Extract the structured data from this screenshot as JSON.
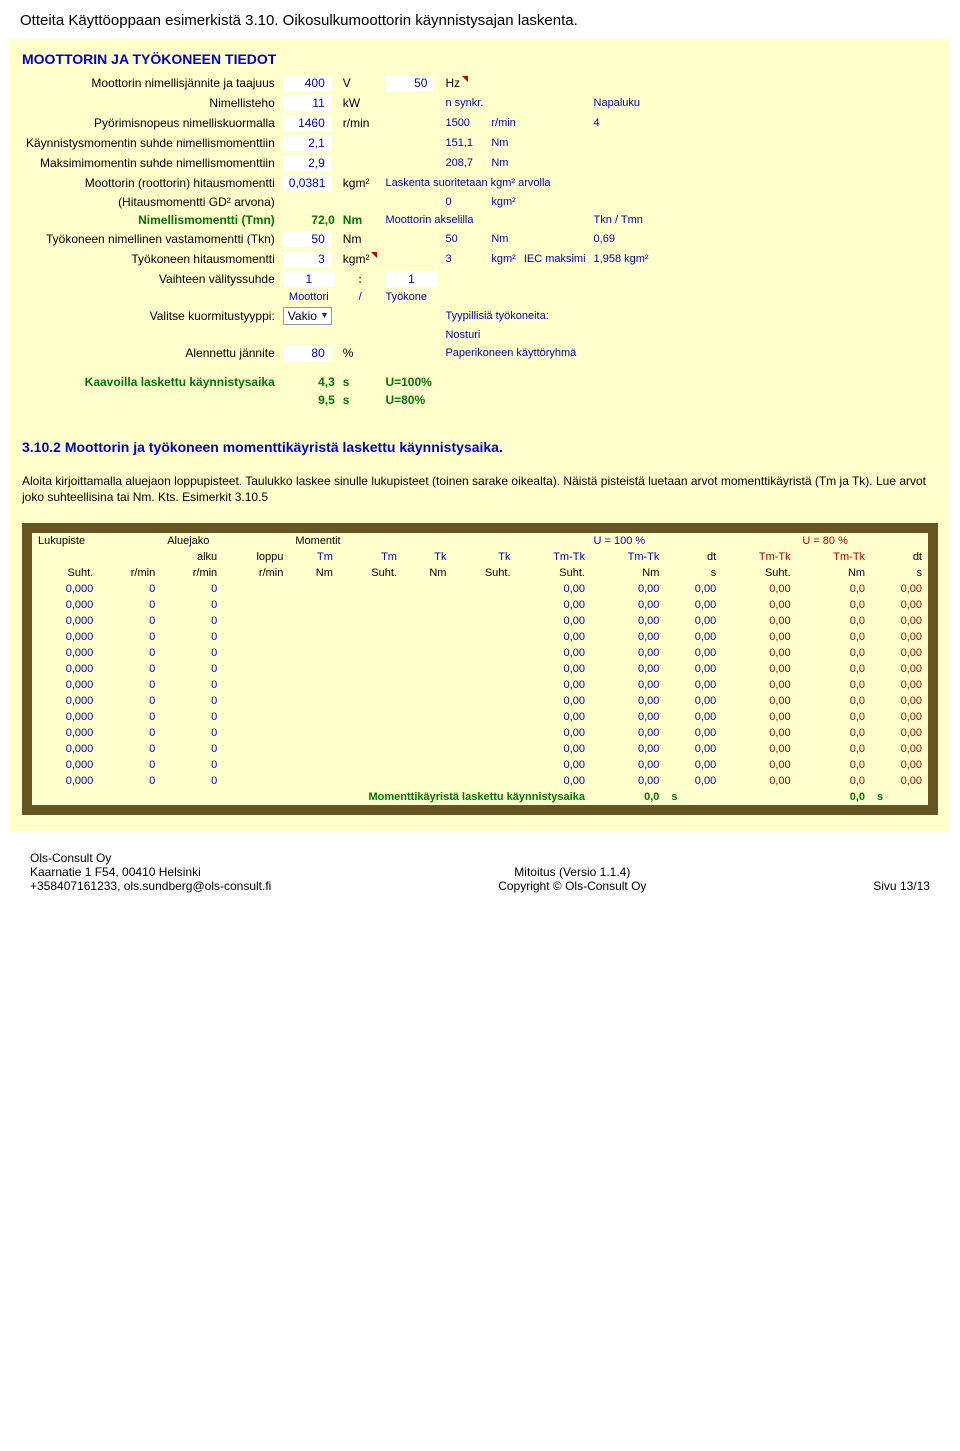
{
  "pageTitle": "Otteita Käyttöoppaan esimerkistä 3.10. Oikosulkumoottorin käynnistysajan laskenta.",
  "sec1": {
    "title": "MOOTTORIN JA TYÖKONEEN TIEDOT",
    "rows": {
      "r1": {
        "label": "Moottorin nimellisjännite ja taajuus",
        "v1": "400",
        "u1": "V",
        "v2": "50",
        "u2": "Hz"
      },
      "r2": {
        "label": "Nimellisteho",
        "v1": "11",
        "u1": "kW",
        "side": "n synkr.",
        "sideR": "Napaluku"
      },
      "r3": {
        "label": "Pyörimisnopeus nimelliskuormalla",
        "v1": "1460",
        "u1": "r/min",
        "sv": "1500",
        "su": "r/min",
        "nap": "4"
      },
      "r4": {
        "label": "Käynnistysmomentin suhde nimellismomenttiin",
        "v1": "2,1",
        "sv": "151,1",
        "su": "Nm"
      },
      "r5": {
        "label": "Maksimimomentin suhde nimellismomenttiin",
        "v1": "2,9",
        "sv": "208,7",
        "su": "Nm"
      },
      "r6": {
        "label": "Moottorin (roottorin) hitausmomentti",
        "v1": "0,0381",
        "u1": "kgm²",
        "note": "Laskenta suoritetaan kgm² arvolla"
      },
      "r7": {
        "label": "(Hitausmomentti GD² arvona)",
        "sv": "0",
        "su": "kgm²"
      },
      "r8": {
        "label": "Nimellismomentti (Tmn)",
        "sv": "72,0",
        "su": "Nm",
        "note": "Moottorin akselilla",
        "ratio": "Tkn / Tmn"
      },
      "r9": {
        "label": "Työkoneen nimellinen vastamomentti (Tkn)",
        "v1": "50",
        "u1": "Nm",
        "sv": "50",
        "su": "Nm",
        "ratio": "0,69"
      },
      "r10": {
        "label": "Työkoneen hitausmomentti",
        "v1": "3",
        "u1": "kgm²",
        "sv": "3",
        "su": "kgm²",
        "note": "IEC maksimi",
        "iec": "1,958",
        "iecu": "kgm²"
      },
      "r11": {
        "label": "Vaihteen välityssuhde",
        "v1": "1",
        "colon": ":",
        "v2": "1"
      },
      "r12": {
        "l": "Moottori",
        "m": "/",
        "r": "Työkone"
      },
      "r13": {
        "label": "Valitse kuormitustyyppi:",
        "sel": "Vakio",
        "note": "Tyypillisiä työkoneita:",
        "n2": "Nosturi"
      },
      "r14": {
        "label": "Alennettu jännite",
        "v1": "80",
        "u1": "%",
        "note": "Paperikoneen käyttöryhmä"
      },
      "r15": {
        "label": "Kaavoilla laskettu käynnistysaika",
        "v1": "4,3",
        "u1": "s",
        "n1": "U=100%",
        "v2": "9,5",
        "u2": "s",
        "n2": "U=80%"
      }
    }
  },
  "sec2": {
    "title": "3.10.2 Moottorin ja työkoneen momenttikäyristä laskettu käynnistysaika.",
    "para": "Aloita kirjoittamalla aluejaon loppupisteet. Taulukko laskee sinulle lukupisteet (toinen sarake oikealta). Näistä pisteistä luetaan arvot momenttikäyristä (Tm ja Tk). Lue arvot joko suhteellisina tai Nm. Kts. Esimerkit 3.10.5"
  },
  "table": {
    "groupHeaders": [
      "Lukupiste",
      "Aluejako",
      "Momentit",
      "U = 100 %",
      "U = 80 %"
    ],
    "subHeaders1": [
      "",
      "",
      "alku",
      "loppu",
      "Tm",
      "Tm",
      "Tk",
      "Tk",
      "Tm-Tk",
      "Tm-Tk",
      "dt",
      "Tm-Tk",
      "Tm-Tk",
      "dt"
    ],
    "subHeaders2": [
      "Suht.",
      "r/min",
      "r/min",
      "r/min",
      "Nm",
      "Suht.",
      "Nm",
      "Suht.",
      "Suht.",
      "Nm",
      "s",
      "Suht.",
      "Nm",
      "s"
    ],
    "rows": [
      [
        "0,000",
        "0",
        "0",
        "",
        "",
        "",
        "",
        "",
        "0,00",
        "0,00",
        "0,00",
        "0,00",
        "0,0",
        "0,00"
      ],
      [
        "0,000",
        "0",
        "0",
        "",
        "",
        "",
        "",
        "",
        "0,00",
        "0,00",
        "0,00",
        "0,00",
        "0,0",
        "0,00"
      ],
      [
        "0,000",
        "0",
        "0",
        "",
        "",
        "",
        "",
        "",
        "0,00",
        "0,00",
        "0,00",
        "0,00",
        "0,0",
        "0,00"
      ],
      [
        "0,000",
        "0",
        "0",
        "",
        "",
        "",
        "",
        "",
        "0,00",
        "0,00",
        "0,00",
        "0,00",
        "0,0",
        "0,00"
      ],
      [
        "0,000",
        "0",
        "0",
        "",
        "",
        "",
        "",
        "",
        "0,00",
        "0,00",
        "0,00",
        "0,00",
        "0,0",
        "0,00"
      ],
      [
        "0,000",
        "0",
        "0",
        "",
        "",
        "",
        "",
        "",
        "0,00",
        "0,00",
        "0,00",
        "0,00",
        "0,0",
        "0,00"
      ],
      [
        "0,000",
        "0",
        "0",
        "",
        "",
        "",
        "",
        "",
        "0,00",
        "0,00",
        "0,00",
        "0,00",
        "0,0",
        "0,00"
      ],
      [
        "0,000",
        "0",
        "0",
        "",
        "",
        "",
        "",
        "",
        "0,00",
        "0,00",
        "0,00",
        "0,00",
        "0,0",
        "0,00"
      ],
      [
        "0,000",
        "0",
        "0",
        "",
        "",
        "",
        "",
        "",
        "0,00",
        "0,00",
        "0,00",
        "0,00",
        "0,0",
        "0,00"
      ],
      [
        "0,000",
        "0",
        "0",
        "",
        "",
        "",
        "",
        "",
        "0,00",
        "0,00",
        "0,00",
        "0,00",
        "0,0",
        "0,00"
      ],
      [
        "0,000",
        "0",
        "0",
        "",
        "",
        "",
        "",
        "",
        "0,00",
        "0,00",
        "0,00",
        "0,00",
        "0,0",
        "0,00"
      ],
      [
        "0,000",
        "0",
        "0",
        "",
        "",
        "",
        "",
        "",
        "0,00",
        "0,00",
        "0,00",
        "0,00",
        "0,0",
        "0,00"
      ],
      [
        "0,000",
        "0",
        "0",
        "",
        "",
        "",
        "",
        "",
        "0,00",
        "0,00",
        "0,00",
        "0,00",
        "0,0",
        "0,00"
      ]
    ],
    "finalLabel": "Momenttikäyristä laskettu käynnistysaika",
    "finalV1": "0,0",
    "finalU1": "s",
    "finalV2": "0,0",
    "finalU2": "s",
    "colStyles": {
      "col0": "blue",
      "col1": "blue",
      "col2": "blue",
      "col3": "blue",
      "col4": "blue",
      "col5": "blue",
      "col6": "blue",
      "col7": "blue",
      "col8": "blue",
      "col9": "blue",
      "col10": "blue",
      "col11": "red",
      "col12": "red",
      "col13": "red"
    }
  },
  "footer": {
    "l1": "Ols-Consult Oy",
    "l2": "Kaarnatie 1 F54, 00410 Helsinki",
    "l3": "+358407161233, ols.sundberg@ols-consult.fi",
    "c1": "Mitoitus (Versio 1.1.4)",
    "c2": "Copyright © Ols-Consult Oy",
    "r1": "Sivu 13/13"
  }
}
